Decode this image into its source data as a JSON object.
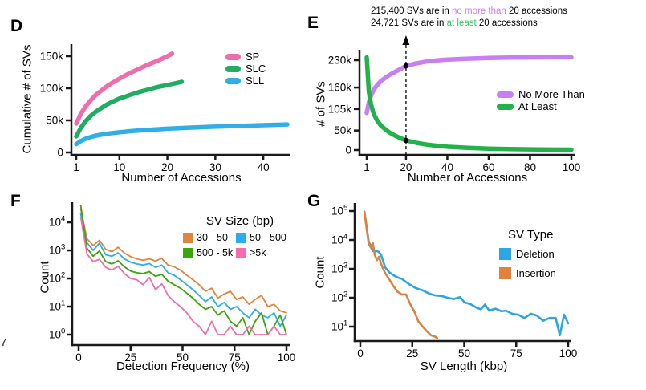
{
  "stray_text": "7",
  "chart_data": [
    {
      "panel_label": "D",
      "type": "line",
      "xlabel": "Number of Accessions",
      "ylabel": "Cumulative # of SVs",
      "xlim": [
        1,
        45
      ],
      "ylim": [
        0,
        165000
      ],
      "xticks": [
        {
          "v": 1,
          "label": "1"
        },
        {
          "v": 10,
          "label": "10"
        },
        {
          "v": 20,
          "label": "20"
        },
        {
          "v": 30,
          "label": "30"
        },
        {
          "v": 40,
          "label": "40"
        }
      ],
      "yticks": [
        {
          "v": 0,
          "label": "0"
        },
        {
          "v": 50000,
          "label": "50k"
        },
        {
          "v": 100000,
          "label": "100k"
        },
        {
          "v": 150000,
          "label": "150k"
        }
      ],
      "legend_position": "upper-right",
      "series": [
        {
          "name": "SP",
          "color": "#F06CAB",
          "x": [
            1,
            2,
            3,
            4,
            5,
            6,
            7,
            8,
            10,
            12,
            14,
            16,
            18,
            20,
            21
          ],
          "y": [
            45000,
            61000,
            72000,
            81000,
            89000,
            95000,
            101000,
            106000,
            115000,
            123000,
            130000,
            137000,
            143000,
            150000,
            154000
          ]
        },
        {
          "name": "SLC",
          "color": "#1FAE5F",
          "x": [
            1,
            2,
            3,
            4,
            5,
            6,
            7,
            8,
            10,
            12,
            14,
            16,
            18,
            20,
            23
          ],
          "y": [
            25000,
            39000,
            49000,
            57000,
            63000,
            68000,
            73000,
            77000,
            84000,
            89000,
            94000,
            98000,
            102000,
            105000,
            110000
          ]
        },
        {
          "name": "SLL",
          "color": "#2FAFE5",
          "x": [
            1,
            2,
            3,
            4,
            5,
            6,
            7,
            8,
            10,
            12,
            14,
            17,
            20,
            24,
            28,
            33,
            38,
            42,
            45
          ],
          "y": [
            13000,
            18000,
            21500,
            24000,
            26000,
            27500,
            28700,
            29700,
            31500,
            33000,
            34200,
            35600,
            37000,
            38400,
            39600,
            41000,
            42000,
            43000,
            43600
          ]
        }
      ]
    },
    {
      "panel_label": "E",
      "type": "line",
      "xlabel": "Number of Accessions",
      "ylabel": "# of SVs",
      "xlim": [
        1,
        100
      ],
      "ylim": [
        0,
        230000
      ],
      "xticks": [
        {
          "v": 1,
          "label": "1"
        },
        {
          "v": 20,
          "label": "20"
        },
        {
          "v": 40,
          "label": "40"
        },
        {
          "v": 60,
          "label": "60"
        },
        {
          "v": 80,
          "label": "80"
        },
        {
          "v": 100,
          "label": "100"
        }
      ],
      "yticks": [
        {
          "v": 0,
          "label": "0"
        },
        {
          "v": 50000,
          "label": "50k"
        },
        {
          "v": 105000,
          "label": "105k"
        },
        {
          "v": 160000,
          "label": "160k"
        },
        {
          "v": 230000,
          "label": "230k"
        }
      ],
      "legend_position": "right",
      "annotation": {
        "x_value": 20,
        "dot_values": [
          215400,
          24721
        ],
        "line1": {
          "pre": "215,400 SVs are in ",
          "hl": "no more than",
          "post": " 20 accessions",
          "hl_color": "#C77CFF"
        },
        "line2": {
          "pre": "24,721 SVs are in ",
          "hl": "at least",
          "post": " 20 accessions",
          "hl_color": "#35C765"
        }
      },
      "series": [
        {
          "name": "No More Than",
          "color": "#C77FF2",
          "x": [
            1,
            2,
            3,
            4,
            5,
            6,
            8,
            10,
            12,
            15,
            18,
            20,
            25,
            30,
            35,
            40,
            50,
            60,
            70,
            80,
            90,
            100
          ],
          "y": [
            95000,
            122000,
            138000,
            150000,
            159000,
            166000,
            177000,
            185000,
            192000,
            201000,
            209000,
            215400,
            222000,
            226500,
            229500,
            231500,
            234000,
            235500,
            236500,
            237000,
            237200,
            237300
          ]
        },
        {
          "name": "At Least",
          "color": "#22B24A",
          "x": [
            1,
            2,
            3,
            4,
            5,
            6,
            8,
            10,
            12,
            15,
            18,
            20,
            25,
            30,
            35,
            40,
            50,
            60,
            70,
            80,
            90,
            100
          ],
          "y": [
            237000,
            150000,
            118000,
            99000,
            86000,
            76000,
            62000,
            53000,
            45000,
            36000,
            29000,
            24721,
            18500,
            14000,
            11000,
            8500,
            5500,
            3500,
            2500,
            1800,
            1300,
            1000
          ]
        }
      ]
    },
    {
      "panel_label": "F",
      "type": "line",
      "xlabel": "Detection Frequency (%)",
      "ylabel": "Count",
      "yscale": "log",
      "xlim": [
        0,
        100
      ],
      "ylim": [
        1,
        40000
      ],
      "xticks": [
        {
          "v": 0,
          "label": "0"
        },
        {
          "v": 25,
          "label": "25"
        },
        {
          "v": 50,
          "label": "50"
        },
        {
          "v": 75,
          "label": "75"
        },
        {
          "v": 100,
          "label": "100"
        }
      ],
      "yticks_log": [
        {
          "exp": "0"
        },
        {
          "exp": "1"
        },
        {
          "exp": "2"
        },
        {
          "exp": "3"
        },
        {
          "exp": "4"
        }
      ],
      "legend_title": "SV Size (bp)",
      "legend_position": "upper-right-inside",
      "series": [
        {
          "name": "30 - 50",
          "color": "#E2833E",
          "x": [
            1,
            4,
            7,
            10,
            13,
            16,
            19,
            22,
            25,
            28,
            31,
            34,
            37,
            40,
            43,
            46,
            49,
            52,
            55,
            58,
            61,
            64,
            67,
            70,
            73,
            76,
            79,
            82,
            85,
            88,
            91,
            94,
            97,
            100
          ],
          "y": [
            30000,
            2600,
            1500,
            2300,
            1100,
            900,
            1300,
            800,
            600,
            500,
            450,
            500,
            420,
            520,
            300,
            260,
            200,
            130,
            90,
            60,
            35,
            45,
            20,
            28,
            35,
            18,
            22,
            12,
            18,
            25,
            10,
            12,
            7,
            6
          ]
        },
        {
          "name": "50 - 500",
          "color": "#2BADEE",
          "x": [
            1,
            4,
            7,
            10,
            13,
            16,
            19,
            22,
            25,
            28,
            31,
            34,
            37,
            40,
            43,
            46,
            49,
            52,
            55,
            58,
            61,
            64,
            67,
            70,
            73,
            76,
            79,
            82,
            85,
            88,
            91,
            94,
            97,
            100
          ],
          "y": [
            20000,
            1900,
            1000,
            1800,
            700,
            620,
            820,
            500,
            380,
            330,
            300,
            340,
            250,
            300,
            160,
            130,
            90,
            60,
            40,
            25,
            15,
            22,
            10,
            14,
            8,
            10,
            6,
            4,
            8,
            5,
            4,
            6,
            2,
            5
          ]
        },
        {
          "name": "500 - 5k",
          "color": "#3AA50C",
          "x": [
            1,
            4,
            7,
            10,
            13,
            16,
            19,
            22,
            25,
            28,
            31,
            34,
            37,
            40,
            43,
            46,
            49,
            52,
            55,
            58,
            61,
            64,
            67,
            70,
            73,
            76,
            79,
            82,
            85,
            88,
            91,
            94,
            97,
            100
          ],
          "y": [
            40000,
            1200,
            620,
            950,
            400,
            330,
            430,
            260,
            185,
            160,
            150,
            175,
            120,
            140,
            80,
            60,
            45,
            30,
            20,
            12,
            8,
            10,
            5,
            7,
            3,
            2,
            4,
            1,
            3,
            6,
            1,
            2,
            5,
            1
          ]
        },
        {
          "name": ">5k",
          "color": "#F76BAC",
          "x": [
            1,
            4,
            7,
            10,
            13,
            16,
            19,
            22,
            25,
            28,
            31,
            34,
            37,
            40,
            43,
            46,
            49,
            52,
            55,
            58,
            61,
            64,
            67,
            70,
            73,
            76,
            79,
            82,
            85,
            88,
            91,
            94,
            97,
            100
          ],
          "y": [
            15000,
            750,
            400,
            480,
            250,
            200,
            270,
            150,
            100,
            90,
            60,
            110,
            40,
            65,
            25,
            15,
            10,
            6,
            3,
            2,
            1,
            3,
            1,
            1,
            2,
            1,
            1,
            2,
            1,
            1,
            1,
            2,
            1,
            1
          ]
        }
      ]
    },
    {
      "panel_label": "G",
      "type": "line",
      "xlabel": "SV Length (kbp)",
      "ylabel": "Count",
      "yscale": "log",
      "xlim": [
        0,
        100
      ],
      "ylim": [
        10,
        100000
      ],
      "xticks": [
        {
          "v": 0,
          "label": "0"
        },
        {
          "v": 25,
          "label": "25"
        },
        {
          "v": 50,
          "label": "50"
        },
        {
          "v": 75,
          "label": "75"
        },
        {
          "v": 100,
          "label": "100"
        }
      ],
      "yticks_log": [
        {
          "exp": "1"
        },
        {
          "exp": "2"
        },
        {
          "exp": "3"
        },
        {
          "exp": "4"
        },
        {
          "exp": "5"
        }
      ],
      "legend_title": "SV Type",
      "legend_position": "right-inside",
      "series": [
        {
          "name": "Deletion",
          "color": "#2CA5E8",
          "x": [
            2,
            4,
            5,
            6,
            7,
            8,
            9,
            10,
            12,
            14,
            16,
            18,
            20,
            22,
            24,
            26,
            28,
            30,
            33,
            36,
            39,
            42,
            45,
            48,
            50,
            53,
            56,
            58,
            60,
            62,
            65,
            68,
            70,
            73,
            76,
            79,
            82,
            85,
            88,
            91,
            94,
            96,
            98,
            100
          ],
          "y": [
            95000,
            9000,
            6000,
            4200,
            4000,
            4100,
            3800,
            3000,
            1100,
            750,
            600,
            500,
            450,
            350,
            280,
            230,
            200,
            180,
            140,
            120,
            115,
            100,
            90,
            105,
            70,
            60,
            45,
            40,
            58,
            36,
            42,
            34,
            36,
            28,
            26,
            20,
            28,
            24,
            16,
            20,
            20,
            5,
            26,
            13
          ]
        },
        {
          "name": "Insertion",
          "color": "#E0813C",
          "x": [
            2,
            4,
            5,
            6,
            7,
            8,
            9,
            10,
            11,
            12,
            14,
            16,
            18,
            20,
            22,
            24,
            26,
            28,
            30,
            32,
            34,
            36,
            37
          ],
          "y": [
            90000,
            7500,
            5500,
            8000,
            3000,
            2000,
            2600,
            1500,
            1000,
            700,
            420,
            250,
            160,
            130,
            130,
            60,
            33,
            15,
            10,
            7,
            5,
            4.5,
            4
          ]
        }
      ]
    }
  ]
}
